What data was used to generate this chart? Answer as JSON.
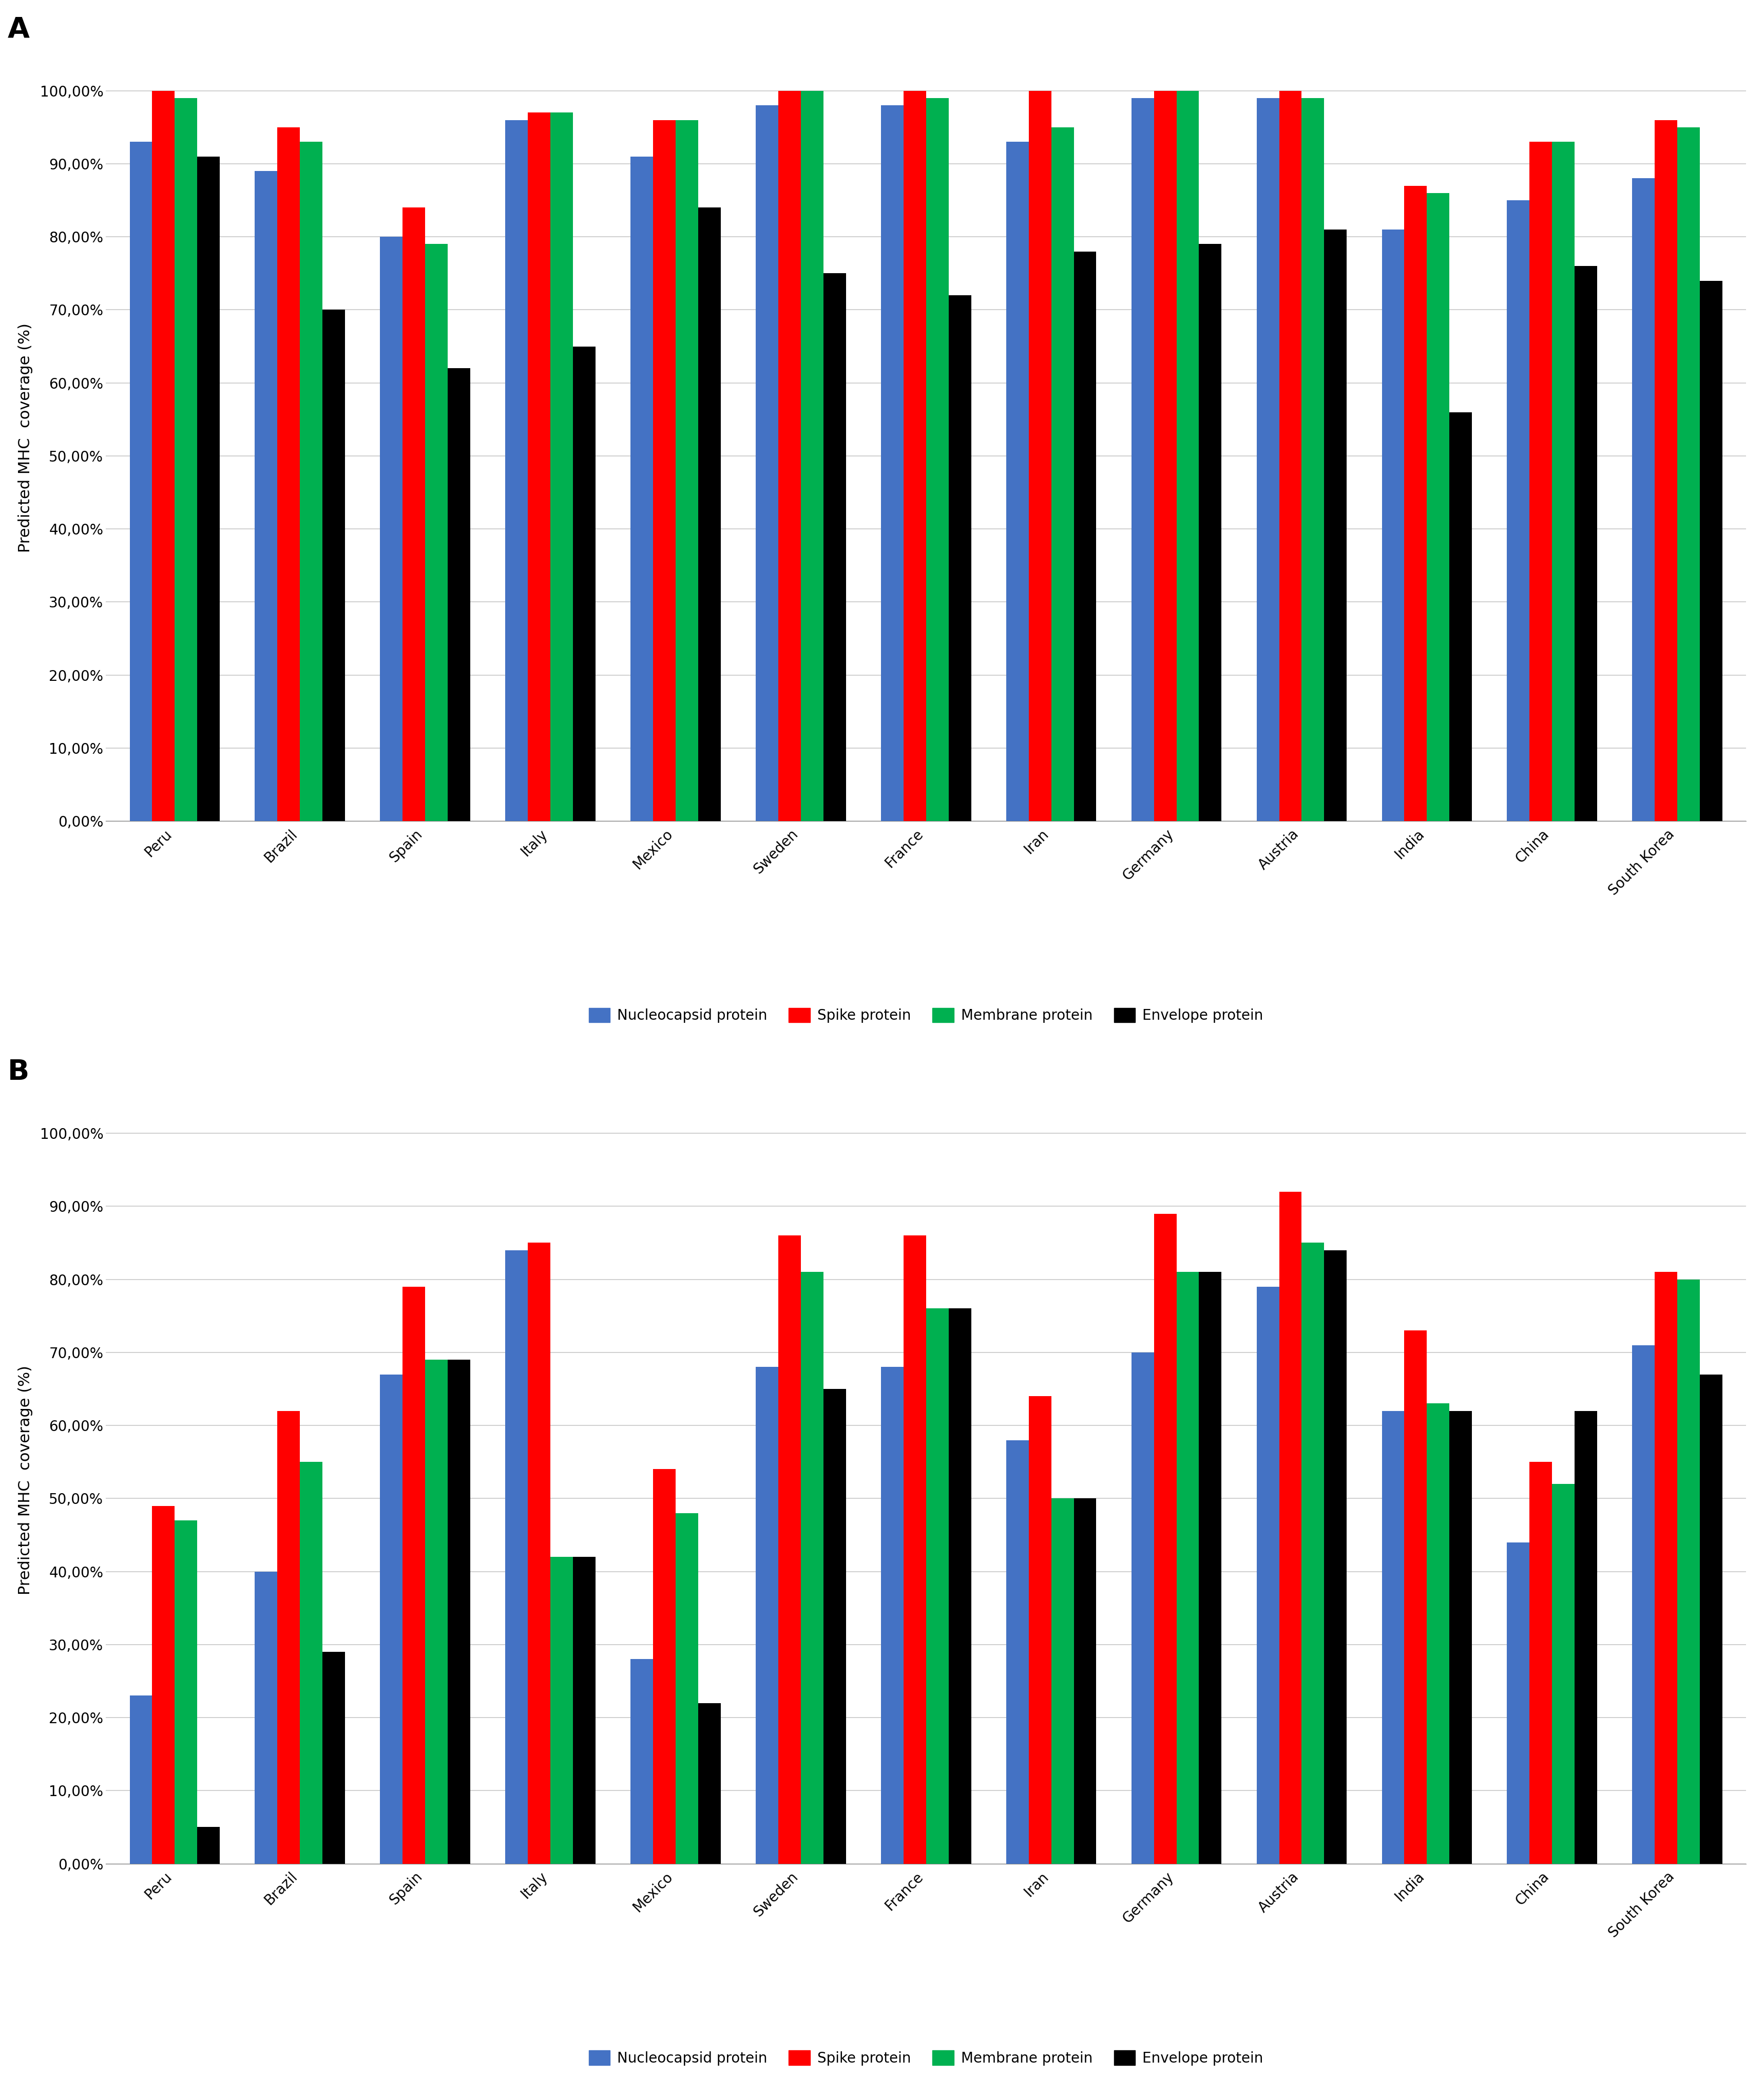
{
  "categories": [
    "Peru",
    "Brazil",
    "Spain",
    "Italy",
    "Mexico",
    "Sweden",
    "France",
    "Iran",
    "Germany",
    "Austria",
    "India",
    "China",
    "South Korea"
  ],
  "panel_A": {
    "nucleocapsid": [
      93,
      89,
      80,
      96,
      91,
      98,
      98,
      93,
      99,
      99,
      81,
      85,
      88
    ],
    "spike": [
      100,
      95,
      84,
      97,
      96,
      100,
      100,
      100,
      100,
      100,
      87,
      93,
      96
    ],
    "membrane": [
      99,
      93,
      79,
      97,
      96,
      100,
      99,
      95,
      100,
      99,
      86,
      93,
      95
    ],
    "envelope": [
      91,
      70,
      62,
      65,
      84,
      75,
      72,
      78,
      79,
      81,
      56,
      76,
      74
    ]
  },
  "panel_B": {
    "nucleocapsid": [
      23,
      40,
      67,
      84,
      28,
      68,
      68,
      58,
      70,
      79,
      62,
      44,
      71
    ],
    "spike": [
      49,
      62,
      79,
      85,
      54,
      86,
      86,
      64,
      89,
      92,
      73,
      55,
      81
    ],
    "membrane": [
      47,
      55,
      69,
      42,
      48,
      81,
      76,
      50,
      81,
      85,
      63,
      52,
      80
    ],
    "envelope": [
      5,
      29,
      69,
      42,
      22,
      65,
      76,
      50,
      81,
      84,
      62,
      62,
      67
    ]
  },
  "colors": {
    "nucleocapsid": "#4472C4",
    "spike": "#FF0000",
    "membrane": "#00B050",
    "envelope": "#000000"
  },
  "ylabel": "Predicted MHC  coverage (%)",
  "legend_labels": [
    "Nucleocapsid protein",
    "Spike protein",
    "Membrane protein",
    "Envelope protein"
  ],
  "yticks": [
    0,
    10,
    20,
    30,
    40,
    50,
    60,
    70,
    80,
    90,
    100
  ],
  "ytick_labels": [
    "0,00%",
    "10,00%",
    "20,00%",
    "30,00%",
    "40,00%",
    "50,00%",
    "60,00%",
    "70,00%",
    "80,00%",
    "90,00%",
    "100,00%"
  ]
}
